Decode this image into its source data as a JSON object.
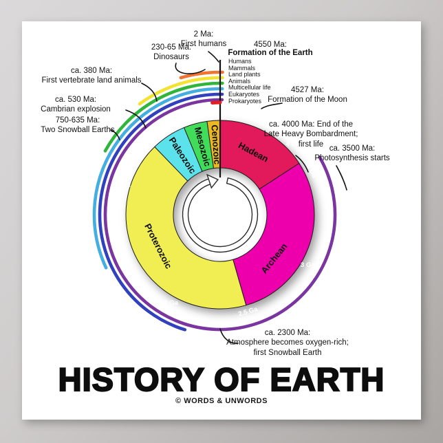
{
  "title": "HISTORY OF EARTH",
  "copyright": "© WORDS & UNWORDS",
  "tree_of_life": [
    "Humans",
    "Mammals",
    "Land plants",
    "Animals",
    "Multicellular life",
    "Eukaryotes",
    "Prokaryotes"
  ],
  "annotations": {
    "humans": "2 Ma:\nFirst humans",
    "dinosaurs": "230-65 Ma:\nDinosaurs",
    "vertebrates": "ca. 380 Ma:\nFirst vertebrate land animals",
    "cambrian": "ca. 530 Ma:\nCambrian explosion",
    "snowball": "750-635 Ma:\nTwo Snowball Earths",
    "earth_line1": "4550 Ma:",
    "earth_line2": "Formation of the Earth",
    "moon": "4527 Ma:\nFormation of the Moon",
    "bombardment": "ca. 4000 Ma: End of the\nLate Heavy Bombardment;\nfirst life",
    "photosynthesis": "ca. 3500 Ma:\nPhotosynthesis starts",
    "oxygen": "ca. 2300 Ma:\nAtmosphere becomes oxygen-rich;\nfirst Snowball Earth"
  },
  "chart_data": {
    "type": "donut-timeline",
    "total_ga": 4.6,
    "direction": "clockwise-from-top",
    "ring_color": "#9C9C9C",
    "eras": [
      {
        "name": "Hadean",
        "start_ga": 4.6,
        "end_ga": 4.0,
        "color": "#E2195B",
        "a0": 0,
        "a1": 57,
        "label_angle": 28,
        "label_rotate": 28
      },
      {
        "name": "Archean",
        "start_ga": 4.0,
        "end_ga": 2.5,
        "color": "#ED00AC",
        "a0": 57,
        "a1": 164,
        "label_angle": 129,
        "label_rotate": -51
      },
      {
        "name": "Proterozoic",
        "start_ga": 2.5,
        "end_ga": 0.542,
        "color": "#F0EE52",
        "a0": 164,
        "a1": 316,
        "label_angle": 243,
        "label_rotate": 63
      },
      {
        "name": "Paleozoic",
        "start_ga": 0.542,
        "end_ga": 0.251,
        "color": "#5CE2EA",
        "a0": 316,
        "a1": 337.5,
        "label_angle": 327,
        "label_rotate": 57
      },
      {
        "name": "Mesozoic",
        "start_ga": 0.251,
        "end_ga": 0.065,
        "color": "#41DC5A",
        "a0": 337.5,
        "a1": 352,
        "label_angle": 345,
        "label_rotate": 75
      },
      {
        "name": "Cenozoic",
        "start_ga": 0.065,
        "end_ga": 0.0,
        "color": "#E9B822",
        "a0": 352,
        "a1": 360,
        "label_angle": 356,
        "label_rotate": 86
      }
    ],
    "ring_labels": [
      {
        "text": "4.6 Ga",
        "angle": 7,
        "rotate": 0
      },
      {
        "text": "4 Ga",
        "angle": 46,
        "rotate": 0
      },
      {
        "text": "3.8 Ga",
        "angle": 63,
        "rotate": 63
      },
      {
        "text": "3 Ga",
        "angle": 120,
        "rotate": 0
      },
      {
        "text": "2.5 Ga",
        "angle": 164,
        "rotate": -16
      },
      {
        "text": "2 Ga",
        "angle": 209,
        "rotate": 0
      },
      {
        "text": "1 Ga",
        "angle": 287,
        "rotate": 0
      },
      {
        "text": "542 Ma",
        "angle": 315,
        "rotate": -45
      },
      {
        "text": "251 Ma",
        "angle": 335,
        "rotate": -25
      },
      {
        "text": "65 Ma",
        "angle": 351,
        "rotate": -9
      }
    ],
    "life_arcs": [
      {
        "name": "Prokaryotes",
        "color": "#7A35A0",
        "start_angle": 60,
        "end_angle": 361,
        "radius": 167
      },
      {
        "name": "Eukaryotes",
        "color": "#3141BE",
        "start_angle": 197,
        "end_angle": 361,
        "radius": 175
      },
      {
        "name": "Multicellular life",
        "color": "#45AEE0",
        "start_angle": 245,
        "end_angle": 361,
        "radius": 183
      },
      {
        "name": "Animals",
        "color": "#2FB53C",
        "start_angle": 299,
        "end_angle": 361,
        "radius": 191
      },
      {
        "name": "Land plants",
        "color": "#F2E332",
        "start_angle": 324,
        "end_angle": 361,
        "radius": 199
      },
      {
        "name": "Mammals",
        "color": "#F07430",
        "start_angle": 344,
        "end_angle": 361,
        "radius": 207
      },
      {
        "name": "Humans",
        "color": "#E02020",
        "start_angle": 356,
        "end_angle": 360,
        "radius": 163
      }
    ]
  }
}
